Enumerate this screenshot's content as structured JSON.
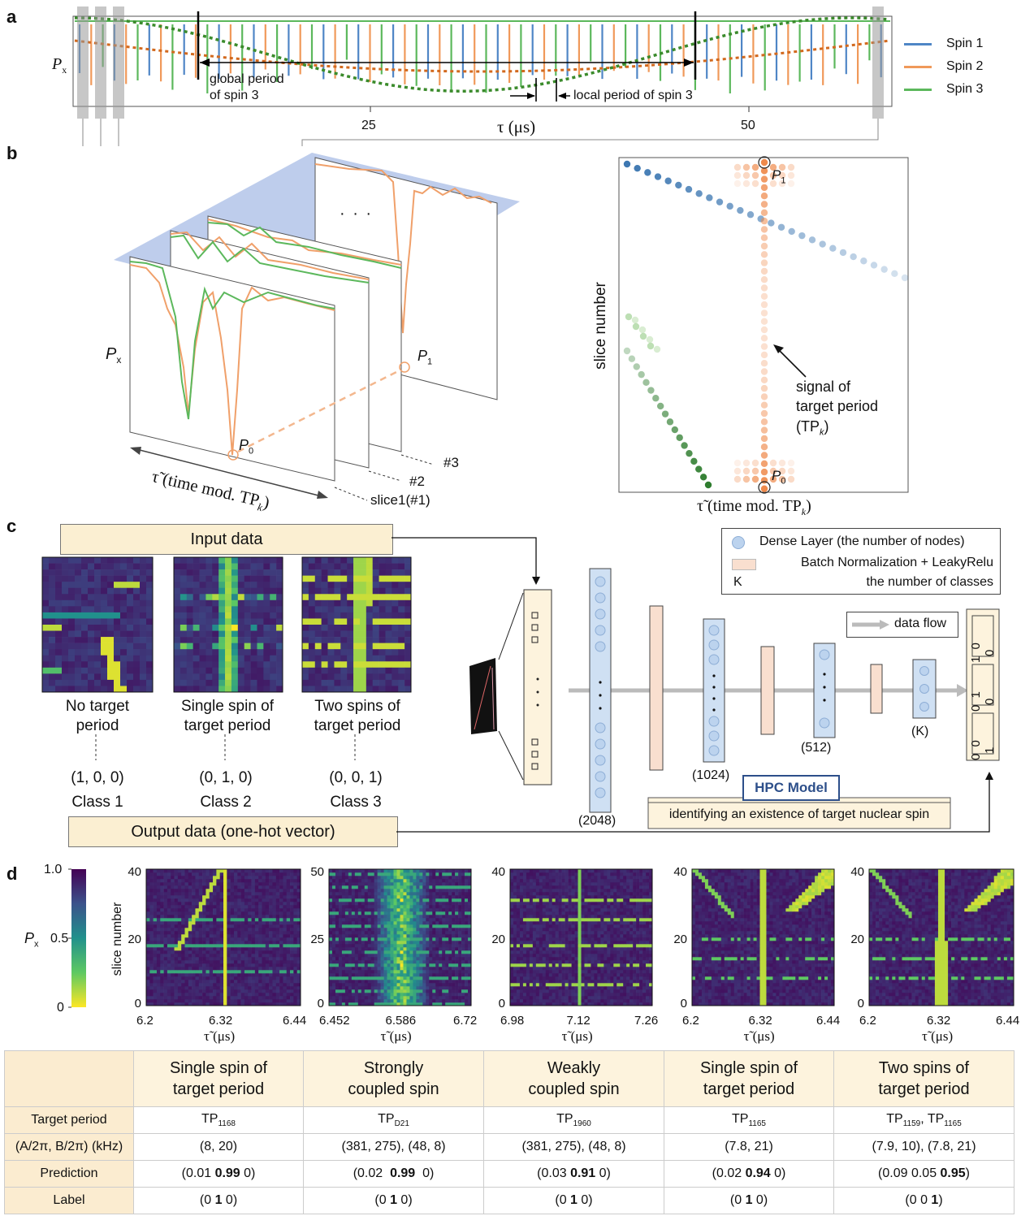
{
  "panels": {
    "a": "a",
    "b": "b",
    "c": "c",
    "d": "d"
  },
  "panel_a": {
    "ylabel": "P",
    "ylabel_sub": "x",
    "xlabel": "τ (μs)",
    "ticks": [
      "25",
      "50"
    ],
    "legend": [
      {
        "name": "Spin 1",
        "color": "#4f86c6"
      },
      {
        "name": "Spin 2",
        "color": "#f0995a"
      },
      {
        "name": "Spin 3",
        "color": "#5cb85c"
      }
    ],
    "ann_global": "global period\nof spin 3",
    "ann_global_1": "global period",
    "ann_global_2": "of spin 3",
    "ann_local": "local period of spin 3"
  },
  "panel_b": {
    "px_label": "P",
    "px_sub": "x",
    "p0": "P",
    "p0_sub": "0",
    "p1": "P",
    "p1_sub": "1",
    "dots": "· · ·",
    "slice1": "slice1(#1)",
    "slice2": "#2",
    "slice3": "#3",
    "xaxis": "τ̃ (time mod. TP",
    "xaxis_sub": "k",
    "xaxis_end": ")",
    "right_ylabel": "slice number",
    "right_xlabel": "τ̃ (time mod. TP",
    "right_xlabel_sub": "k",
    "right_xlabel_end": ")",
    "signal_1": "signal of",
    "signal_2": "target period",
    "signal_3": "(TP",
    "signal_3_sub": "k",
    "signal_3_end": ")"
  },
  "panel_c": {
    "input_label": "Input data",
    "output_label": "Output data (one-hot vector)",
    "examples": [
      {
        "label_1": "No target",
        "label_2": "period",
        "vector": "(1, 0, 0)",
        "class": "Class 1"
      },
      {
        "label_1": "Single spin of",
        "label_2": "target period",
        "vector": "(0, 1, 0)",
        "class": "Class 2"
      },
      {
        "label_1": "Two spins of",
        "label_2": "target period",
        "vector": "(0, 0, 1)",
        "class": "Class 3"
      }
    ],
    "legend_dense": "Dense Layer (the number of nodes)",
    "legend_bn": "Batch Normalization + LeakyRelu",
    "legend_k": "K",
    "legend_k_desc": "the number of classes",
    "data_flow": "data flow",
    "layers": [
      "(2048)",
      "(1024)",
      "(512)",
      "(K)"
    ],
    "model_name": "HPC Model",
    "model_desc": "identifying an existence of target nuclear spin",
    "outputs": [
      "1 0 0",
      "0 1 0",
      "0 0 1"
    ]
  },
  "panel_d": {
    "colorbar_label": "P",
    "colorbar_sub": "x",
    "colorbar_ticks": [
      "1.0",
      "0.5",
      "0"
    ],
    "ylabel": "slice number",
    "xlabel": "τ̃ (μs)",
    "plots": [
      {
        "yticks": [
          "40",
          "20",
          "0"
        ],
        "xticks": [
          "6.2",
          "6.32",
          "6.44"
        ]
      },
      {
        "yticks": [
          "50",
          "25",
          "0"
        ],
        "xticks": [
          "6.452",
          "6.586",
          "6.72"
        ]
      },
      {
        "yticks": [
          "40",
          "20",
          "0"
        ],
        "xticks": [
          "6.98",
          "7.12",
          "7.26"
        ]
      },
      {
        "yticks": [
          "40",
          "20",
          "0"
        ],
        "xticks": [
          "6.2",
          "6.32",
          "6.44"
        ]
      },
      {
        "yticks": [
          "40",
          "20",
          "0"
        ],
        "xticks": [
          "6.2",
          "6.32",
          "6.44"
        ]
      }
    ]
  },
  "table": {
    "headers": [
      {
        "l1": "Single spin of",
        "l2": "target period"
      },
      {
        "l1": "Strongly",
        "l2": "coupled spin"
      },
      {
        "l1": "Weakly",
        "l2": "coupled spin"
      },
      {
        "l1": "Single spin of",
        "l2": "target period"
      },
      {
        "l1": "Two spins of",
        "l2": "target period"
      }
    ],
    "row_labels": [
      "Target period",
      "(A/2π, B/2π) (kHz)",
      "Prediction",
      "Label"
    ],
    "target_period": [
      {
        "main": "TP",
        "sub": "1168",
        "extra": "",
        "extra_sub": ""
      },
      {
        "main": "TP",
        "sub": "D21",
        "extra": "",
        "extra_sub": ""
      },
      {
        "main": "TP",
        "sub": "1960",
        "extra": "",
        "extra_sub": ""
      },
      {
        "main": "TP",
        "sub": "1165",
        "extra": "",
        "extra_sub": ""
      },
      {
        "main": "TP",
        "sub": "1159",
        "extra": ", TP",
        "extra_sub": "1165"
      }
    ],
    "couplings": [
      "(8, 20)",
      "(381, 275), (48, 8)",
      "(381, 275), (48, 8)",
      "(7.8, 21)",
      "(7.9, 10), (7.8, 21)"
    ],
    "prediction": [
      {
        "pre": "(0.01 ",
        "bold": "0.99",
        "post": " 0)"
      },
      {
        "pre": "(0.02  ",
        "bold": "0.99",
        "post": "  0)"
      },
      {
        "pre": "(0.03 ",
        "bold": "0.91",
        "post": " 0)"
      },
      {
        "pre": "(0.02 ",
        "bold": "0.94",
        "post": " 0)"
      },
      {
        "pre": "(0.09 0.05 ",
        "bold": "0.95",
        "post": ")"
      }
    ],
    "label": [
      {
        "pre": "(0 ",
        "bold": "1",
        "post": " 0)"
      },
      {
        "pre": "(0 ",
        "bold": "1",
        "post": " 0)"
      },
      {
        "pre": "(0 ",
        "bold": "1",
        "post": " 0)"
      },
      {
        "pre": "(0 ",
        "bold": "1",
        "post": " 0)"
      },
      {
        "pre": "(0 0 ",
        "bold": "1",
        "post": ")"
      }
    ]
  }
}
